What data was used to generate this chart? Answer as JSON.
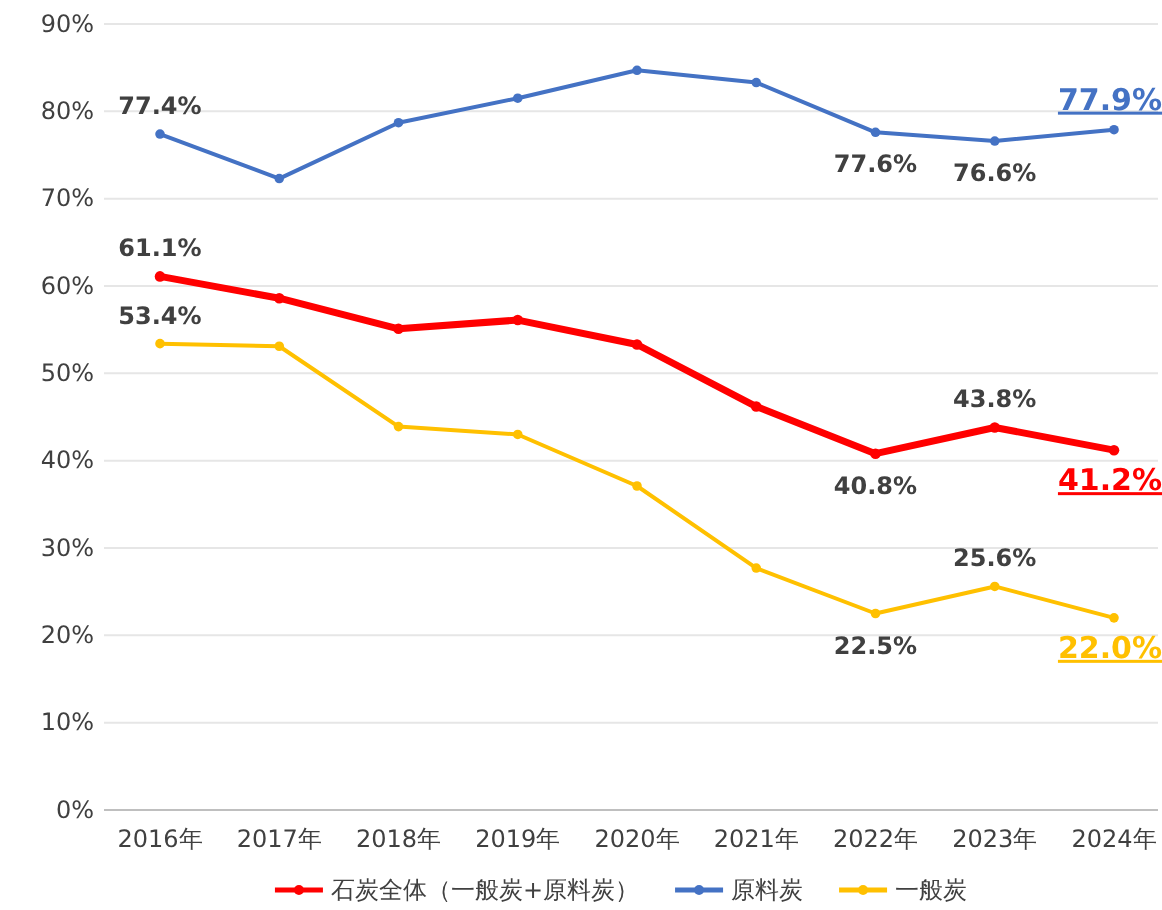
{
  "chart_data": {
    "type": "line",
    "categories": [
      "2016年",
      "2017年",
      "2018年",
      "2019年",
      "2020年",
      "2021年",
      "2022年",
      "2023年",
      "2024年"
    ],
    "ylim": [
      0,
      90
    ],
    "yticks": [
      {
        "value": 0,
        "label": "0%"
      },
      {
        "value": 10,
        "label": "10%"
      },
      {
        "value": 20,
        "label": "20%"
      },
      {
        "value": 30,
        "label": "30%"
      },
      {
        "value": 40,
        "label": "40%"
      },
      {
        "value": 50,
        "label": "50%"
      },
      {
        "value": 60,
        "label": "60%"
      },
      {
        "value": 70,
        "label": "70%"
      },
      {
        "value": 80,
        "label": "80%"
      },
      {
        "value": 90,
        "label": "90%"
      }
    ],
    "grid": "y",
    "legend": "bottom",
    "marker": "circle",
    "series": [
      {
        "name": "石炭全体（一般炭+原料炭）",
        "color": "#ff0000",
        "values": [
          61.1,
          58.6,
          55.1,
          56.1,
          53.3,
          46.2,
          40.8,
          43.8,
          41.2
        ],
        "value_labels": [
          "61.1%",
          null,
          null,
          null,
          null,
          null,
          "40.8%",
          "43.8%",
          "41.2%"
        ]
      },
      {
        "name": "原料炭",
        "color": "#4472c4",
        "values": [
          77.4,
          72.3,
          78.7,
          81.5,
          84.7,
          83.3,
          77.6,
          76.6,
          77.9
        ],
        "value_labels": [
          "77.4%",
          null,
          null,
          null,
          null,
          null,
          "77.6%",
          "76.6%",
          "77.9%"
        ]
      },
      {
        "name": "一般炭",
        "color": "#ffc000",
        "values": [
          53.4,
          53.1,
          43.9,
          43.0,
          37.1,
          27.7,
          22.5,
          25.6,
          22.0
        ],
        "value_labels": [
          "53.4%",
          null,
          null,
          null,
          null,
          null,
          "22.5%",
          "25.6%",
          "22.0%"
        ]
      }
    ]
  }
}
